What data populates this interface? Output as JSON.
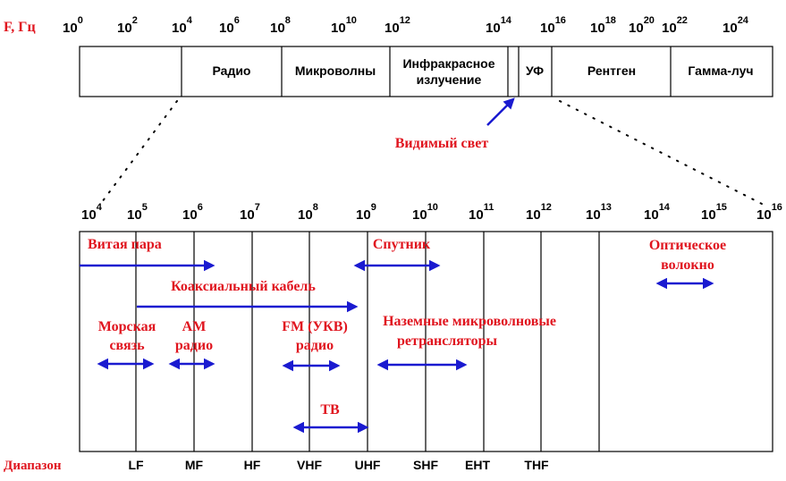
{
  "axis_label": "F, Гц",
  "top_ticks": [
    "0",
    "2",
    "4",
    "6",
    "8",
    "10",
    "12",
    "14",
    "16",
    "18",
    "20",
    "22",
    "24"
  ],
  "tick_base": "10",
  "spectrum_bands": [
    "Радио",
    "Микроволны",
    "Инфракрасное",
    "излучение",
    "УФ",
    "Рентген",
    "Гамма-луч"
  ],
  "visible_light_label": "Видимый свет",
  "lower_ticks": [
    "4",
    "5",
    "6",
    "7",
    "8",
    "9",
    "10",
    "11",
    "12",
    "13",
    "14",
    "15",
    "16"
  ],
  "media": {
    "twisted_pair": "Витая пара",
    "satellite": "Спутник",
    "optical_fiber_line1": "Оптическое",
    "optical_fiber_line2": "волокно",
    "coax": "Коаксиальный кабель",
    "maritime_line1": "Морская",
    "maritime_line2": "связь",
    "am_line1": "AM",
    "am_line2": "радио",
    "fm_line1": "FM (УКВ)",
    "fm_line2": "радио",
    "terrestrial_line1": "Наземные микроволновые",
    "terrestrial_line2": "ретрансляторы",
    "tv": "ТВ"
  },
  "range_label": "Диапазон",
  "ranges": [
    "LF",
    "MF",
    "HF",
    "VHF",
    "UHF",
    "SHF",
    "EHT",
    "THF"
  ],
  "colors": {
    "red": "#e0141e",
    "blue": "#1a1ad0",
    "black": "#000000"
  }
}
